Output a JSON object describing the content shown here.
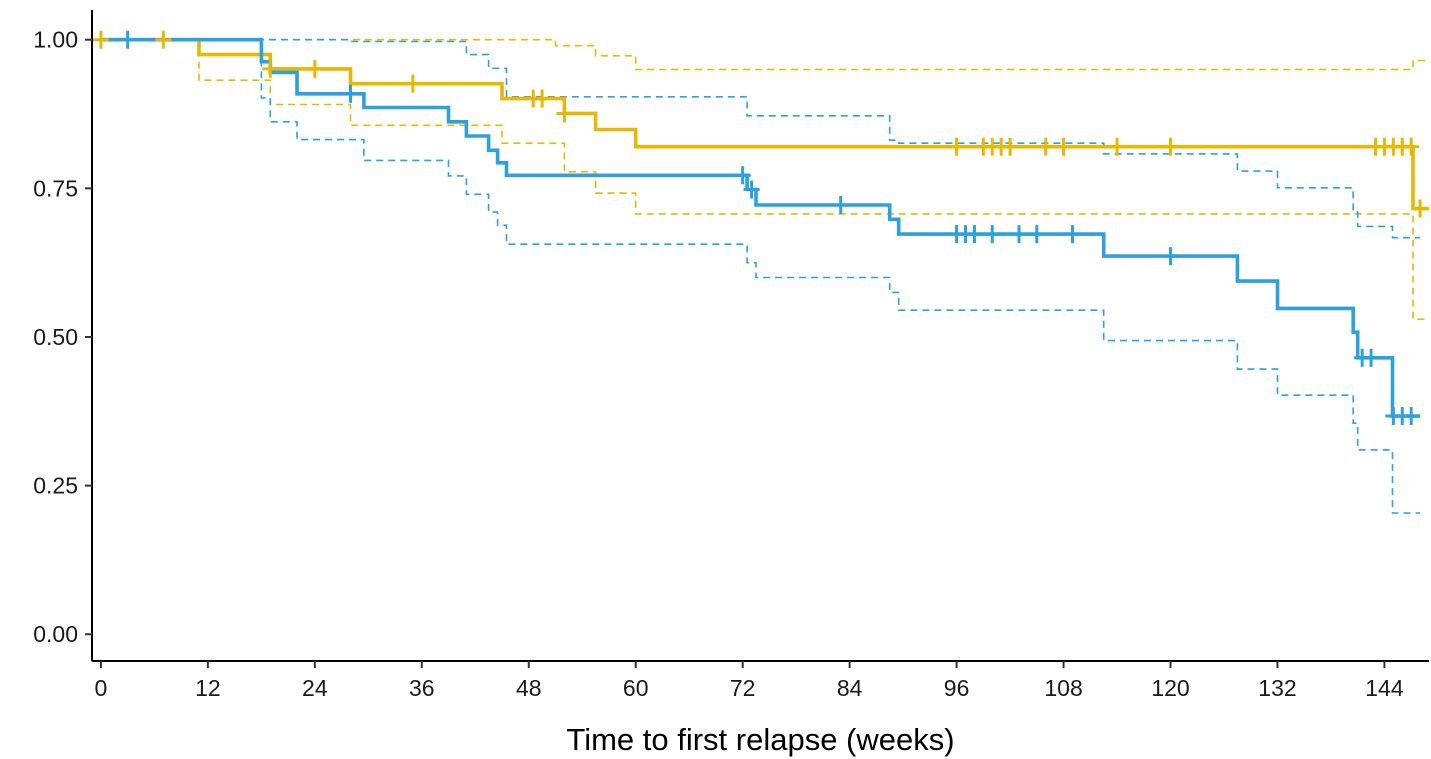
{
  "chart_data": {
    "type": "line",
    "subtype": "kaplan-meier survival curve with confidence bands and censor marks",
    "title": "",
    "xlabel": "Time to first relapse (weeks)",
    "ylabel": "",
    "xlim": [
      -1,
      149
    ],
    "ylim": [
      -0.045,
      1.05
    ],
    "x_ticks": [
      0,
      12,
      24,
      36,
      48,
      60,
      72,
      84,
      96,
      108,
      120,
      132,
      144
    ],
    "x_tick_labels": [
      "0",
      "12",
      "24",
      "36",
      "48",
      "60",
      "72",
      "84",
      "96",
      "108",
      "120",
      "132",
      "144"
    ],
    "y_ticks": [
      0,
      0.25,
      0.5,
      0.75,
      1.0
    ],
    "y_tick_labels": [
      "0.00",
      "0.25",
      "0.50",
      "0.75",
      "1.00"
    ],
    "grid": false,
    "legend": "none",
    "series": [
      {
        "color": "#E7B800",
        "x_end": 149,
        "steps": [
          [
            0,
            1.0
          ],
          [
            11,
            0.975
          ],
          [
            19,
            0.951
          ],
          [
            28,
            0.926
          ],
          [
            45,
            0.901
          ],
          [
            52,
            0.876
          ],
          [
            55.5,
            0.849
          ],
          [
            60,
            0.82
          ],
          [
            147.2,
            0.716
          ]
        ],
        "lower_steps": [
          [
            0,
            1.0
          ],
          [
            11,
            0.932
          ],
          [
            19,
            0.891
          ],
          [
            28,
            0.856
          ],
          [
            45,
            0.826
          ],
          [
            52,
            0.778
          ],
          [
            55.5,
            0.742
          ],
          [
            60,
            0.707
          ],
          [
            147.2,
            0.53
          ]
        ],
        "upper_steps": [
          [
            0,
            1.0
          ],
          [
            11,
            1.0
          ],
          [
            51,
            0.99
          ],
          [
            55.5,
            0.973
          ],
          [
            60,
            0.95
          ],
          [
            147.2,
            0.965
          ]
        ],
        "censor_times": [
          0,
          7,
          19,
          24,
          35,
          48.5,
          49.5,
          52,
          96,
          99,
          100,
          101,
          102,
          106,
          108,
          114,
          120,
          143,
          144,
          145,
          146,
          147,
          148
        ]
      },
      {
        "color": "#2E9FDF",
        "x_end": 148,
        "steps": [
          [
            0,
            1.0
          ],
          [
            18,
            0.963
          ],
          [
            19,
            0.945
          ],
          [
            22,
            0.909
          ],
          [
            29.5,
            0.886
          ],
          [
            39,
            0.862
          ],
          [
            41,
            0.838
          ],
          [
            43.5,
            0.814
          ],
          [
            44.5,
            0.793
          ],
          [
            45.5,
            0.772
          ],
          [
            72.5,
            0.748
          ],
          [
            73.5,
            0.722
          ],
          [
            88.5,
            0.698
          ],
          [
            89.5,
            0.673
          ],
          [
            112.5,
            0.636
          ],
          [
            127.5,
            0.594
          ],
          [
            132,
            0.548
          ],
          [
            140.5,
            0.508
          ],
          [
            141,
            0.465
          ],
          [
            144.9,
            0.367
          ]
        ],
        "lower_steps": [
          [
            0,
            1.0
          ],
          [
            18,
            0.902
          ],
          [
            19,
            0.862
          ],
          [
            22,
            0.832
          ],
          [
            29.5,
            0.797
          ],
          [
            39,
            0.771
          ],
          [
            41,
            0.74
          ],
          [
            43.5,
            0.71
          ],
          [
            44.5,
            0.688
          ],
          [
            45.5,
            0.656
          ],
          [
            72.5,
            0.625
          ],
          [
            73.5,
            0.6
          ],
          [
            88.5,
            0.575
          ],
          [
            89.5,
            0.545
          ],
          [
            112.5,
            0.494
          ],
          [
            127.5,
            0.446
          ],
          [
            132,
            0.402
          ],
          [
            140.5,
            0.355
          ],
          [
            141,
            0.31
          ],
          [
            144.9,
            0.204
          ]
        ],
        "upper_steps": [
          [
            0,
            1.0
          ],
          [
            28,
            0.997
          ],
          [
            41,
            0.975
          ],
          [
            43.5,
            0.952
          ],
          [
            45.5,
            0.904
          ],
          [
            72.5,
            0.872
          ],
          [
            88.5,
            0.831
          ],
          [
            89.5,
            0.826
          ],
          [
            112.5,
            0.808
          ],
          [
            127.5,
            0.779
          ],
          [
            132,
            0.751
          ],
          [
            140.5,
            0.71
          ],
          [
            141,
            0.686
          ],
          [
            144.9,
            0.667
          ]
        ],
        "censor_times": [
          3,
          28,
          72,
          73,
          83,
          96,
          97,
          98,
          100,
          103,
          105,
          109,
          120,
          141.5,
          142.5,
          145,
          146,
          147
        ]
      }
    ]
  }
}
